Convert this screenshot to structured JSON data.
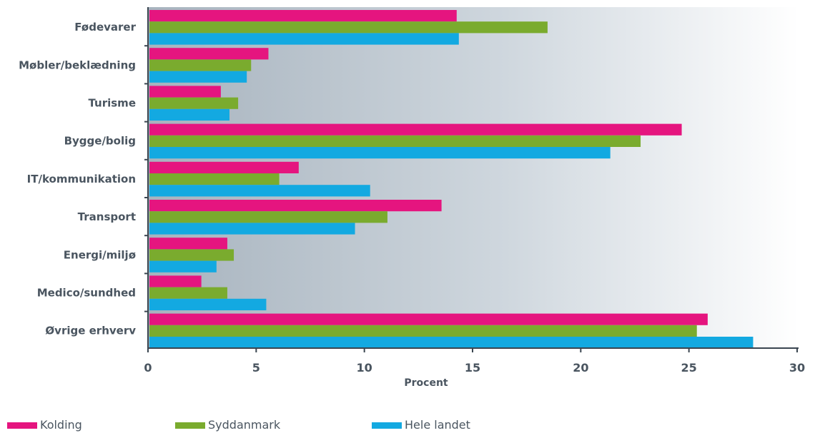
{
  "chart_data": {
    "type": "bar",
    "orientation": "horizontal",
    "categories": [
      "Fødevarer",
      "Møbler/beklædning",
      "Turisme",
      "Bygge/bolig",
      "IT/kommunikation",
      "Transport",
      "Energi/miljø",
      "Medico/sundhed",
      "Øvrige erhverv"
    ],
    "series": [
      {
        "name": "Kolding",
        "color": "#e5157f",
        "values": [
          14.2,
          5.5,
          3.3,
          24.6,
          6.9,
          13.5,
          3.6,
          2.4,
          25.8
        ]
      },
      {
        "name": "Syddanmark",
        "color": "#7aab2e",
        "values": [
          18.4,
          4.7,
          4.1,
          22.7,
          6.0,
          11.0,
          3.9,
          3.6,
          25.3
        ]
      },
      {
        "name": "Hele landet",
        "color": "#13a9e1",
        "values": [
          14.3,
          4.5,
          3.7,
          21.3,
          10.2,
          9.5,
          3.1,
          5.4,
          27.9
        ]
      }
    ],
    "xlabel": "Procent",
    "ylabel": "",
    "xlim": [
      0,
      30
    ],
    "xticks": [
      0,
      5,
      10,
      15,
      20,
      25,
      30
    ],
    "grid": false,
    "legend_position": "bottom-left"
  }
}
